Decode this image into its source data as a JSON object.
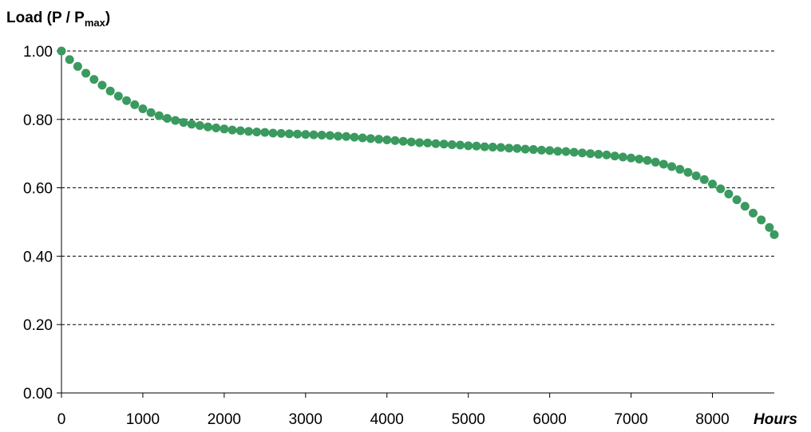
{
  "chart_data": {
    "type": "scatter",
    "title": "",
    "ylabel": {
      "main": "Load (P / P",
      "subscript": "max",
      "close": ")"
    },
    "xlabel": "Hours",
    "xlim": [
      0,
      8760
    ],
    "ylim": [
      0,
      1
    ],
    "x_ticks": [
      0,
      1000,
      2000,
      3000,
      4000,
      5000,
      6000,
      7000,
      8000
    ],
    "x_tick_labels": [
      "0",
      "1000",
      "2000",
      "3000",
      "4000",
      "5000",
      "6000",
      "7000",
      "8000"
    ],
    "y_ticks": [
      0,
      0.2,
      0.4,
      0.6,
      0.8,
      1.0
    ],
    "y_tick_labels": [
      "0.00",
      "0.20",
      "0.40",
      "0.60",
      "0.80",
      "1.00"
    ],
    "grid": "horizontal-dashed",
    "marker_color": "#3a9a5f",
    "series": [
      {
        "x": [
          0,
          100,
          200,
          300,
          400,
          500,
          600,
          700,
          800,
          900,
          1000,
          1100,
          1200,
          1300,
          1400,
          1500,
          1600,
          1700,
          1800,
          1900,
          2000,
          2100,
          2200,
          2300,
          2400,
          2500,
          2600,
          2700,
          2800,
          2900,
          3000,
          3100,
          3200,
          3300,
          3400,
          3500,
          3600,
          3700,
          3800,
          3900,
          4000,
          4100,
          4200,
          4300,
          4400,
          4500,
          4600,
          4700,
          4800,
          4900,
          5000,
          5100,
          5200,
          5300,
          5400,
          5500,
          5600,
          5700,
          5800,
          5900,
          6000,
          6100,
          6200,
          6300,
          6400,
          6500,
          6600,
          6700,
          6800,
          6900,
          7000,
          7100,
          7200,
          7300,
          7400,
          7500,
          7600,
          7700,
          7800,
          7900,
          8000,
          8100,
          8200,
          8300,
          8400,
          8500,
          8600,
          8700,
          8760
        ],
        "y": [
          1.0,
          0.975,
          0.955,
          0.935,
          0.917,
          0.9,
          0.883,
          0.868,
          0.855,
          0.843,
          0.831,
          0.82,
          0.811,
          0.803,
          0.797,
          0.791,
          0.786,
          0.782,
          0.778,
          0.775,
          0.772,
          0.769,
          0.767,
          0.765,
          0.763,
          0.762,
          0.76,
          0.759,
          0.758,
          0.757,
          0.756,
          0.755,
          0.754,
          0.753,
          0.751,
          0.75,
          0.748,
          0.746,
          0.744,
          0.742,
          0.74,
          0.738,
          0.736,
          0.734,
          0.732,
          0.731,
          0.729,
          0.728,
          0.726,
          0.725,
          0.723,
          0.722,
          0.72,
          0.719,
          0.718,
          0.716,
          0.715,
          0.713,
          0.712,
          0.71,
          0.709,
          0.707,
          0.706,
          0.704,
          0.702,
          0.7,
          0.698,
          0.696,
          0.693,
          0.69,
          0.687,
          0.684,
          0.68,
          0.675,
          0.669,
          0.662,
          0.654,
          0.645,
          0.635,
          0.624,
          0.611,
          0.597,
          0.582,
          0.565,
          0.546,
          0.526,
          0.506,
          0.484,
          0.463
        ]
      }
    ]
  }
}
